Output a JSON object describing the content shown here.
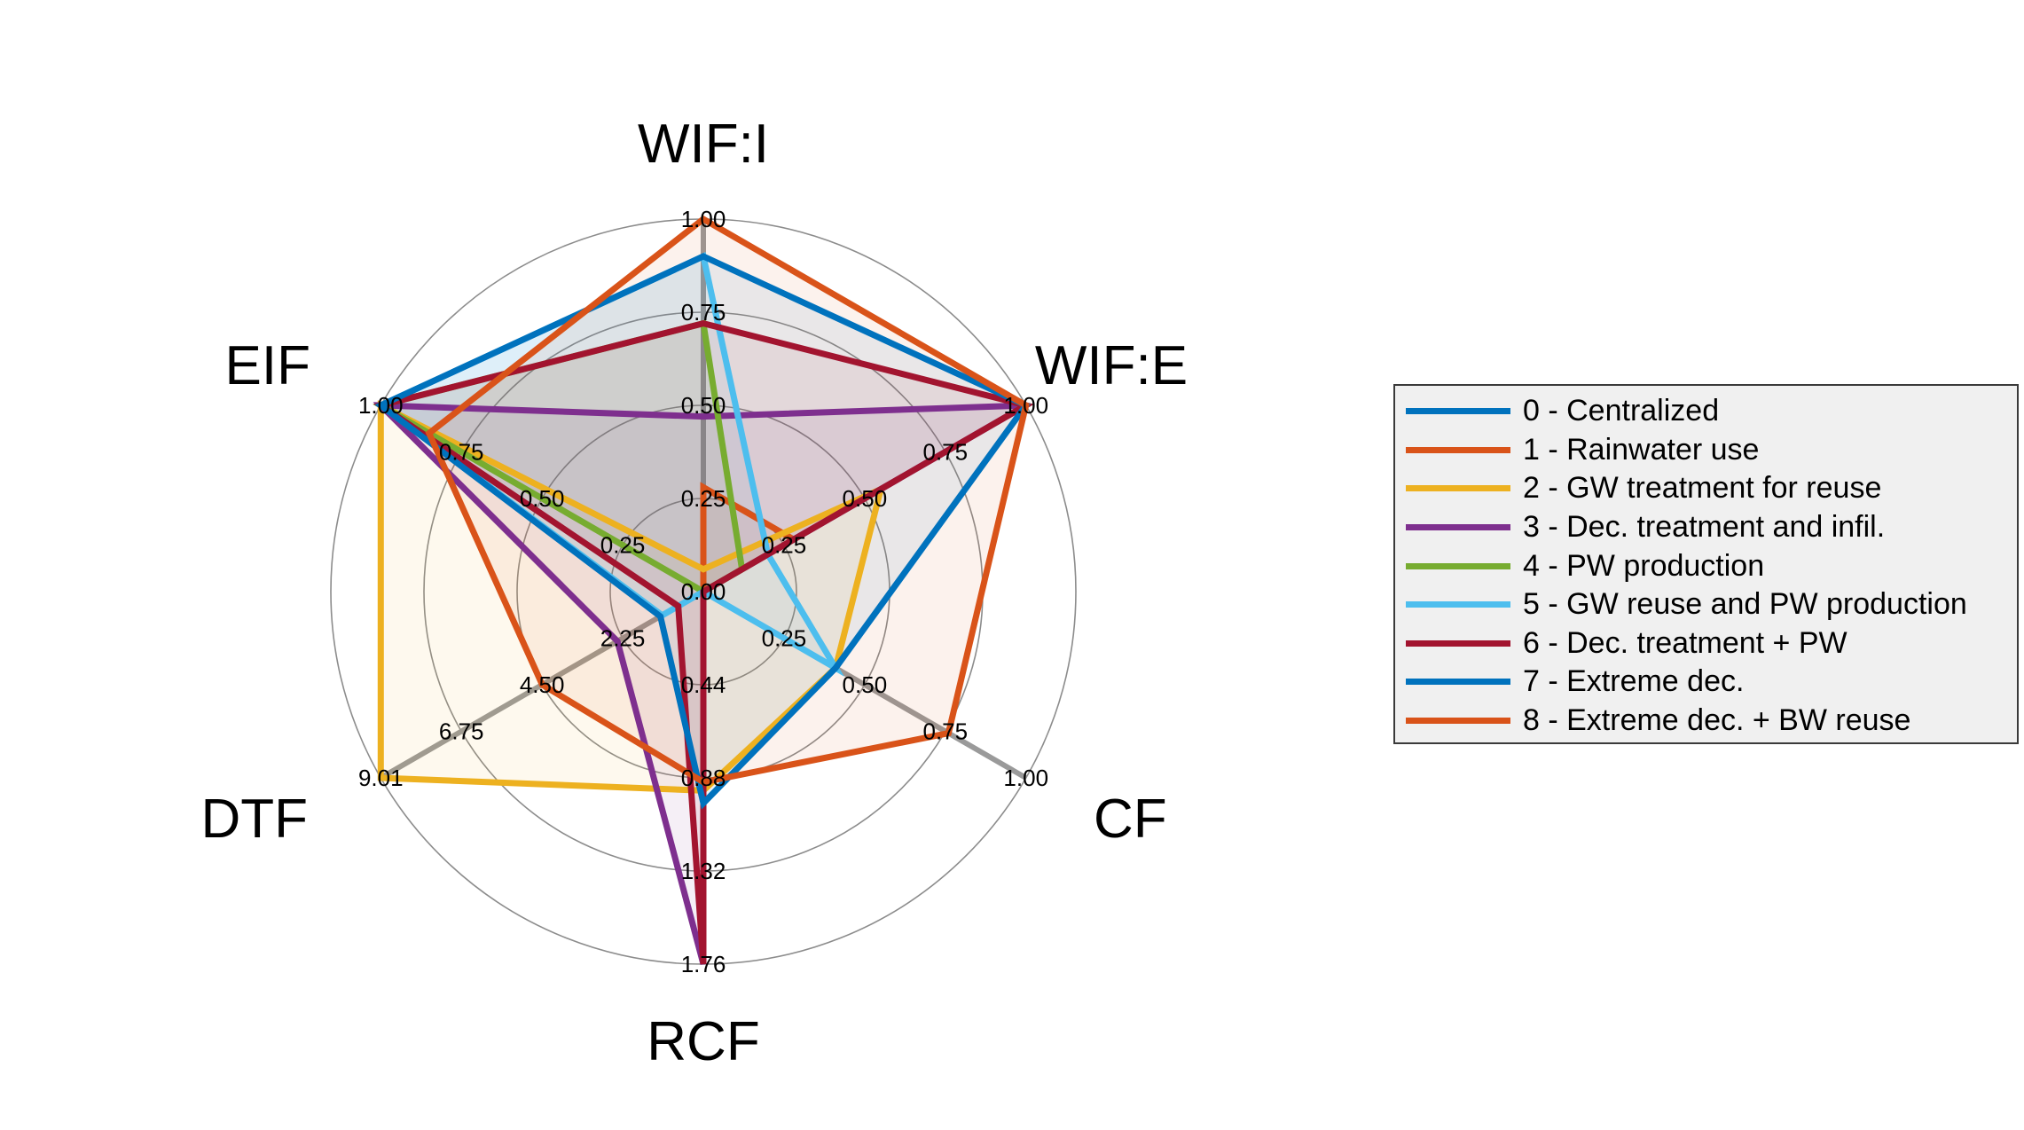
{
  "chart_data": {
    "type": "radar",
    "title": "",
    "axes": [
      {
        "name": "WIF:I",
        "ticks": [
          "0.00",
          "0.25",
          "0.50",
          "0.75",
          "1.00"
        ],
        "range": [
          0,
          1
        ]
      },
      {
        "name": "WIF:E",
        "ticks": [
          "",
          "0.25",
          "0.50",
          "0.75",
          "1.00"
        ],
        "range": [
          0,
          1
        ]
      },
      {
        "name": "CF",
        "ticks": [
          "",
          "0.25",
          "0.50",
          "0.75",
          "1.00"
        ],
        "range": [
          0,
          1
        ]
      },
      {
        "name": "RCF",
        "ticks": [
          "",
          "0.44",
          "0.88",
          "1.32",
          "1.76"
        ],
        "range": [
          0,
          1.76
        ]
      },
      {
        "name": "DTF",
        "ticks": [
          "",
          "2.25",
          "4.50",
          "6.75",
          "9.01"
        ],
        "range": [
          0,
          9.01
        ]
      },
      {
        "name": "EIF",
        "ticks": [
          "",
          "0.25",
          "0.50",
          "0.75",
          "1.00"
        ],
        "range": [
          0,
          1
        ]
      }
    ],
    "series": [
      {
        "name": "0 - Centralized",
        "color": "#0072BD",
        "values": [
          0.0,
          0.0,
          0.0,
          0.0,
          0.0,
          0.0
        ]
      },
      {
        "name": "1 - Rainwater use",
        "color": "#D95319",
        "values": [
          0.28,
          0.28,
          0.0,
          0.0,
          0.0,
          0.0
        ]
      },
      {
        "name": "2 - GW treatment for reuse",
        "color": "#EDB120",
        "values": [
          0.06,
          0.55,
          0.41,
          0.94,
          9.01,
          1.0
        ]
      },
      {
        "name": "3 - Dec. treatment and infil.",
        "color": "#7E2F8E",
        "values": [
          0.47,
          1.0,
          0.0,
          1.76,
          2.4,
          1.0
        ]
      },
      {
        "name": "4 - PW production",
        "color": "#77AC30",
        "values": [
          0.72,
          0.12,
          0.0,
          0.0,
          0.0,
          1.0
        ]
      },
      {
        "name": "5 - GW reuse and PW production",
        "color": "#4DBEEE",
        "values": [
          0.9,
          0.2,
          0.41,
          0.0,
          1.15,
          1.0
        ]
      },
      {
        "name": "6 - Dec. treatment + PW",
        "color": "#A2142F",
        "values": [
          0.72,
          1.0,
          0.0,
          1.76,
          0.7,
          1.0
        ]
      },
      {
        "name": "7 - Extreme dec.",
        "color": "#0072BD",
        "values": [
          0.9,
          1.0,
          0.41,
          1.0,
          1.2,
          1.0
        ]
      },
      {
        "name": "8 - Extreme dec. + BW reuse",
        "color": "#D95319",
        "values": [
          1.0,
          1.0,
          0.76,
          0.9,
          4.5,
          0.85
        ]
      }
    ],
    "legend": "right",
    "grid": true
  }
}
